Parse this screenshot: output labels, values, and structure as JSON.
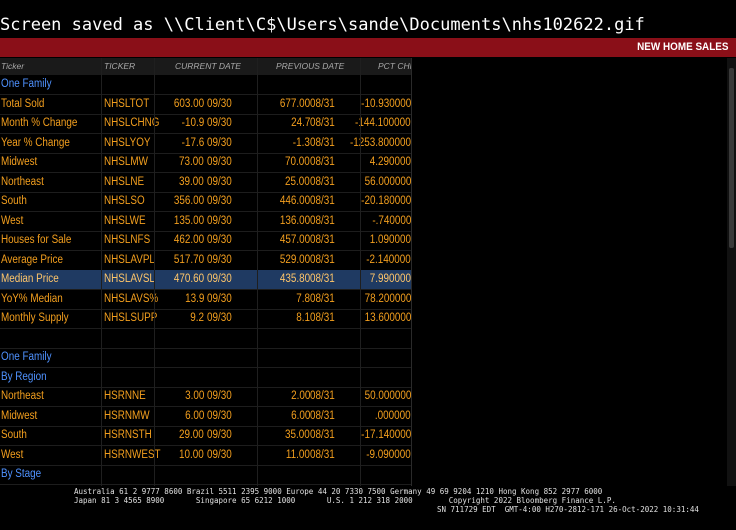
{
  "saved_text": "Screen saved as \\\\Client\\C$\\Users\\sande\\Documents\\nhs102622.gif",
  "title": "NEW HOME SALES",
  "headers": {
    "ticker_label": "Ticker",
    "ticker": "TICKER",
    "current_date": "CURRENT DATE",
    "previous_date": "PREVIOUS DATE",
    "pct_chng": "PCT CHNG"
  },
  "rows": [
    {
      "label": "One Family",
      "section": true
    },
    {
      "label": "Total Sold",
      "ticker": "NHSLTOT",
      "cur": "603.00",
      "cur_date": "09/30",
      "prev": "677.00",
      "prev_date": "08/31",
      "pct": "-10.930000"
    },
    {
      "label": "Month % Change",
      "ticker": "NHSLCHNG",
      "cur": "-10.9",
      "cur_date": "09/30",
      "prev": "24.7",
      "prev_date": "08/31",
      "pct": "-144.100000"
    },
    {
      "label": "Year % Change",
      "ticker": "NHSLYOY",
      "cur": "-17.6",
      "cur_date": "09/30",
      "prev": "-1.3",
      "prev_date": "08/31",
      "pct": "-1253.800000"
    },
    {
      "label": "Midwest",
      "ticker": "NHSLMW",
      "cur": "73.00",
      "cur_date": "09/30",
      "prev": "70.00",
      "prev_date": "08/31",
      "pct": "4.290000"
    },
    {
      "label": "Northeast",
      "ticker": "NHSLNE",
      "cur": "39.00",
      "cur_date": "09/30",
      "prev": "25.00",
      "prev_date": "08/31",
      "pct": "56.000000"
    },
    {
      "label": "South",
      "ticker": "NHSLSO",
      "cur": "356.00",
      "cur_date": "09/30",
      "prev": "446.00",
      "prev_date": "08/31",
      "pct": "-20.180000"
    },
    {
      "label": "West",
      "ticker": "NHSLWE",
      "cur": "135.00",
      "cur_date": "09/30",
      "prev": "136.00",
      "prev_date": "08/31",
      "pct": "-.740000"
    },
    {
      "label": "Houses for Sale",
      "ticker": "NHSLNFS",
      "cur": "462.00",
      "cur_date": "09/30",
      "prev": "457.00",
      "prev_date": "08/31",
      "pct": "1.090000"
    },
    {
      "label": "Average Price",
      "ticker": "NHSLAVPL",
      "cur": "517.70",
      "cur_date": "09/30",
      "prev": "529.00",
      "prev_date": "08/31",
      "pct": "-2.140000"
    },
    {
      "label": "Median Price",
      "ticker": "NHSLAVSL",
      "cur": "470.60",
      "cur_date": "09/30",
      "prev": "435.80",
      "prev_date": "08/31",
      "pct": "7.990000",
      "selected": true
    },
    {
      "label": "YoY% Median",
      "ticker": "NHSLAVS%",
      "cur": "13.9",
      "cur_date": "09/30",
      "prev": "7.8",
      "prev_date": "08/31",
      "pct": "78.200000"
    },
    {
      "label": "Monthly Supply",
      "ticker": "NHSLSUPP",
      "cur": "9.2",
      "cur_date": "09/30",
      "prev": "8.1",
      "prev_date": "08/31",
      "pct": "13.600000"
    },
    {
      "label": ""
    },
    {
      "label": "One Family",
      "section": true
    },
    {
      "label": "By Region",
      "section": true
    },
    {
      "label": "Northeast",
      "ticker": "HSRNNE",
      "cur": "3.00",
      "cur_date": "09/30",
      "prev": "2.00",
      "prev_date": "08/31",
      "pct": "50.000000"
    },
    {
      "label": "Midwest",
      "ticker": "HSRNMW",
      "cur": "6.00",
      "cur_date": "09/30",
      "prev": "6.00",
      "prev_date": "08/31",
      "pct": ".000000"
    },
    {
      "label": "South",
      "ticker": "HSRNSTH",
      "cur": "29.00",
      "cur_date": "09/30",
      "prev": "35.00",
      "prev_date": "08/31",
      "pct": "-17.140000"
    },
    {
      "label": "West",
      "ticker": "HSRNWEST",
      "cur": "10.00",
      "cur_date": "09/30",
      "prev": "11.00",
      "prev_date": "08/31",
      "pct": "-9.090000"
    },
    {
      "label": "By Stage",
      "section": true
    }
  ],
  "footer": {
    "line1": "Australia 61 2 9777 8600 Brazil 5511 2395 9000 Europe 44 20 7330 7500 Germany 49 69 9204 1210 Hong Kong 852 2977 6000",
    "line2": "Japan 81 3 4565 8900       Singapore 65 6212 1000       U.S. 1 212 318 2000        Copyright 2022 Bloomberg Finance L.P.",
    "line3": "SN 711729 EDT  GMT-4:00 H270-2812-171 26-Oct-2022 10:31:44"
  },
  "colors": {
    "accent_red": "#8a0f18",
    "value_orange": "#f39f1e",
    "section_blue": "#4f92ff",
    "selected_bg": "#1f3a62"
  }
}
